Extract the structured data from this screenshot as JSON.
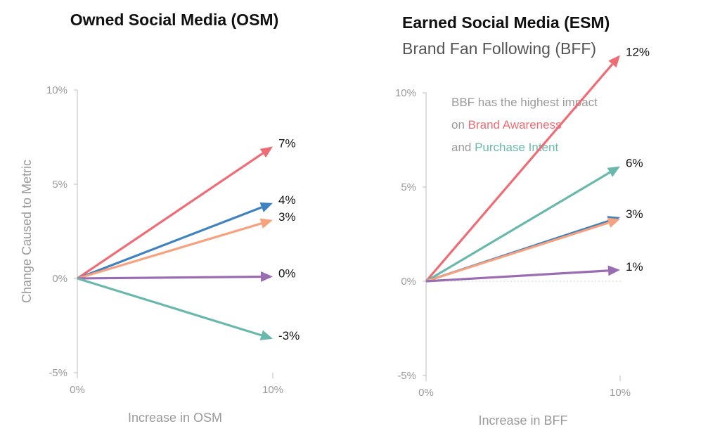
{
  "colors": {
    "awareness": "#ee6c75",
    "consideration": "#3f82bf",
    "favorability": "#f6a27f",
    "recommendation": "#9a6db3",
    "purchase_intent": "#6ab8ad",
    "axis": "#bdbdbd",
    "text_grey": "#9a9a9a"
  },
  "chart_data": [
    {
      "type": "line",
      "title": "Owned Social Media (OSM)",
      "xlabel": "Increase in OSM",
      "ylabel": "Change Caused to Metric",
      "xlim": [
        0,
        10
      ],
      "ylim": [
        -5,
        10
      ],
      "x_ticks": [
        "0%",
        "10%"
      ],
      "y_ticks": [
        "-5%",
        "0%",
        "5%",
        "10%"
      ],
      "series": [
        {
          "name": "Brand Awareness",
          "color_key": "awareness",
          "x": [
            0,
            10
          ],
          "values": [
            0,
            7
          ],
          "label": "7%"
        },
        {
          "name": "Blue metric",
          "color_key": "consideration",
          "x": [
            0,
            10
          ],
          "values": [
            0,
            4
          ],
          "label": "4%"
        },
        {
          "name": "Orange metric",
          "color_key": "favorability",
          "x": [
            0,
            10
          ],
          "values": [
            0,
            3.1
          ],
          "label": "3%"
        },
        {
          "name": "Purple metric",
          "color_key": "recommendation",
          "x": [
            0,
            10
          ],
          "values": [
            0,
            0.1
          ],
          "label": "0%"
        },
        {
          "name": "Purchase Intent",
          "color_key": "purchase_intent",
          "x": [
            0,
            10
          ],
          "values": [
            0,
            -3.2
          ],
          "label": "-3%"
        }
      ]
    },
    {
      "type": "line",
      "title": "Earned Social Media (ESM)",
      "subtitle": "Brand Fan Following (BFF)",
      "xlabel": "Increase in BFF",
      "ylabel": "",
      "xlim": [
        0,
        10
      ],
      "ylim": [
        -5,
        10
      ],
      "x_ticks": [
        "0%",
        "10%"
      ],
      "y_ticks": [
        "-5%",
        "0%",
        "5%",
        "10%"
      ],
      "annotation": {
        "lines": [
          [
            {
              "text": "BBF has the highest impact",
              "color_key": "text_grey"
            }
          ],
          [
            {
              "text": "on ",
              "color_key": "text_grey"
            },
            {
              "text": "Brand Awareness",
              "color_key": "awareness"
            }
          ],
          [
            {
              "text": "and ",
              "color_key": "text_grey"
            },
            {
              "text": "Purchase Intent",
              "color_key": "purchase_intent"
            }
          ]
        ]
      },
      "series": [
        {
          "name": "Brand Awareness",
          "color_key": "awareness",
          "x": [
            0,
            10
          ],
          "values": [
            0,
            12
          ],
          "label": "12%"
        },
        {
          "name": "Purchase Intent",
          "color_key": "purchase_intent",
          "x": [
            0,
            10
          ],
          "values": [
            0,
            6.1
          ],
          "label": "6%"
        },
        {
          "name": "Blue metric",
          "color_key": "consideration",
          "x": [
            0,
            10
          ],
          "values": [
            0,
            3.4
          ],
          "label": "3%"
        },
        {
          "name": "Orange metric",
          "color_key": "favorability",
          "x": [
            0,
            10
          ],
          "values": [
            0,
            3.3
          ],
          "label": ""
        },
        {
          "name": "Purple metric",
          "color_key": "recommendation",
          "x": [
            0,
            10
          ],
          "values": [
            0,
            0.6
          ],
          "label": "1%"
        }
      ]
    }
  ]
}
